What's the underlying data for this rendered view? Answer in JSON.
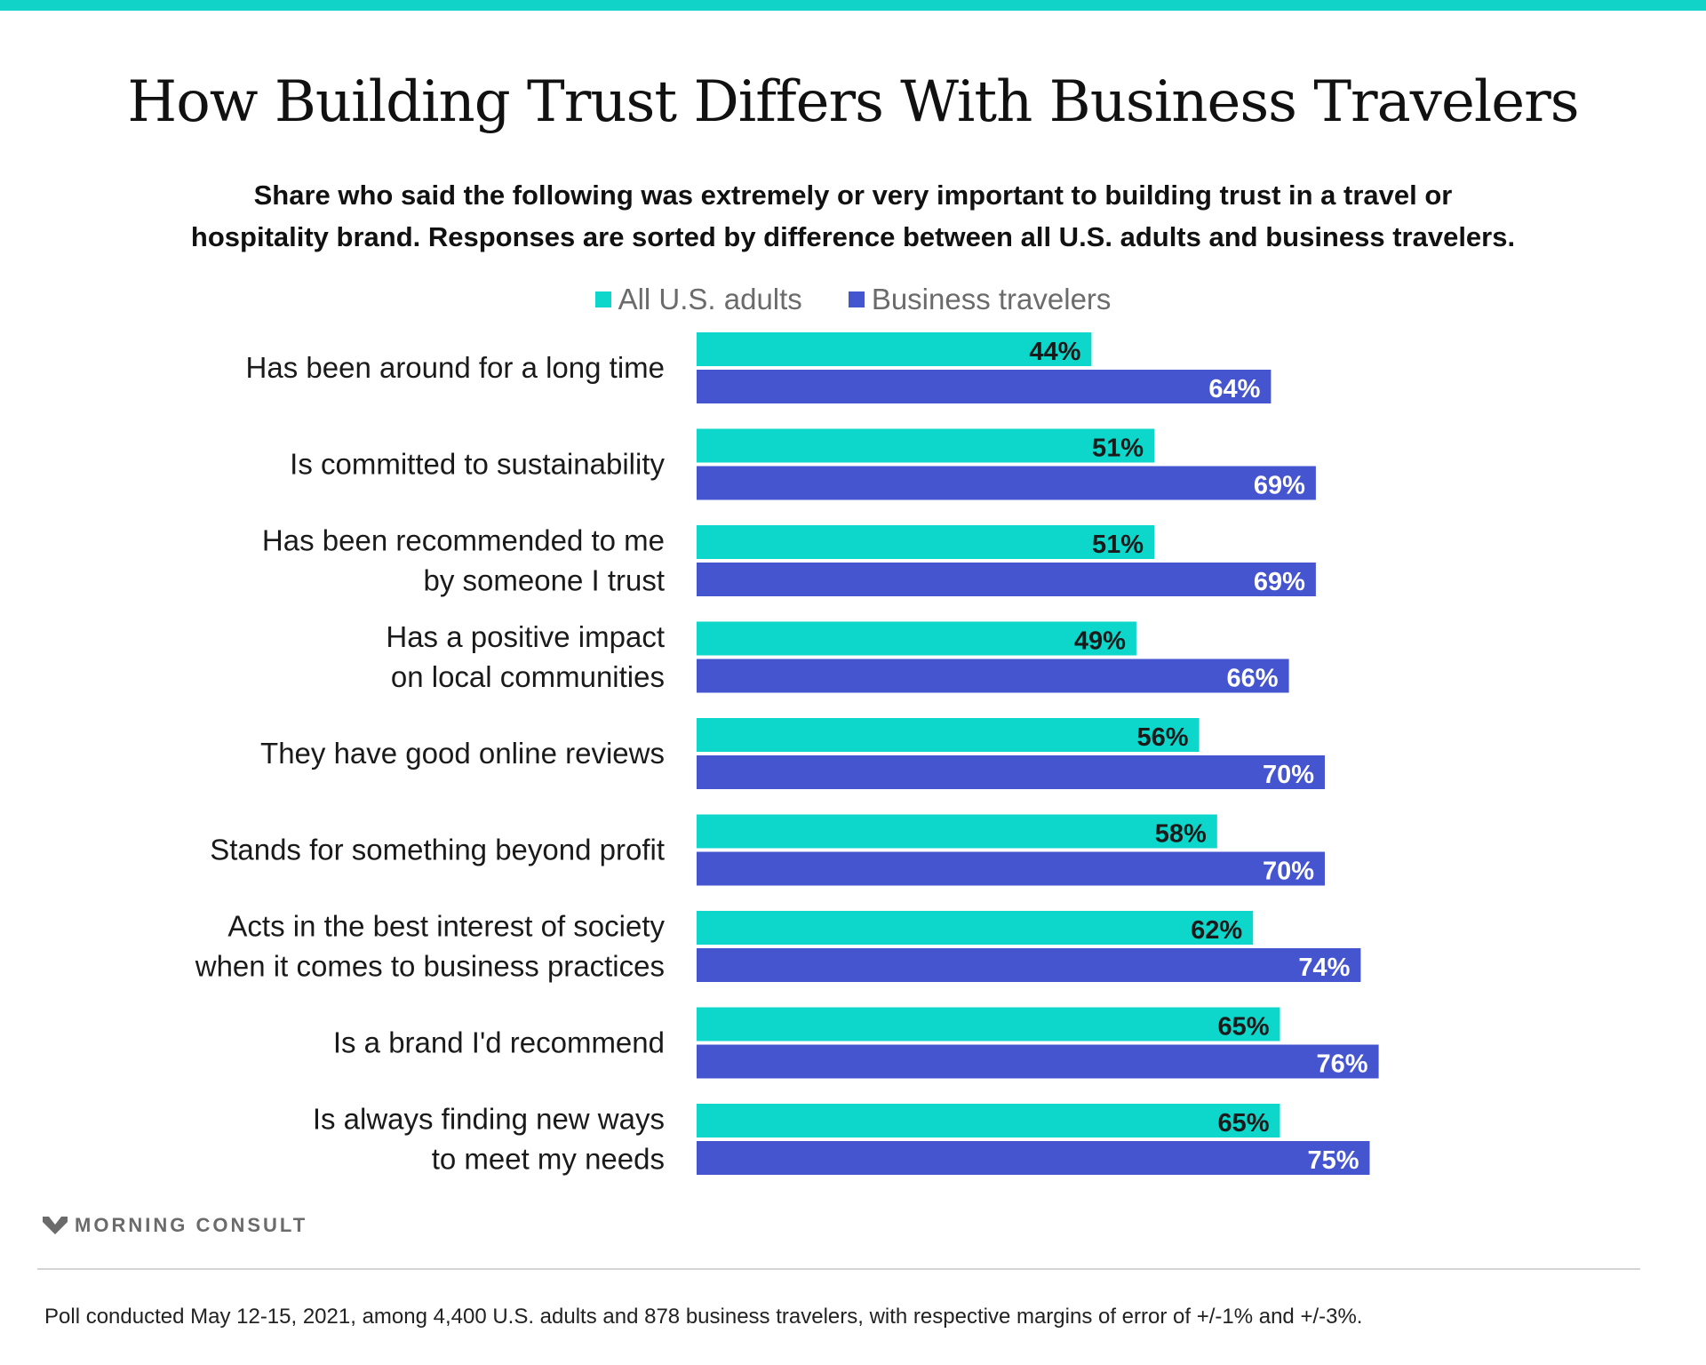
{
  "title": "How Building Trust Differs With Business Travelers",
  "subtitle_lines": [
    "Share who said the following was extremely or very important to building trust in a travel or",
    "hospitality brand. Responses are sorted by difference between all U.S. adults and business travelers."
  ],
  "colors": {
    "accent": "#12d3c7",
    "adults": "#0dd6cb",
    "business": "#4554cf",
    "adults_label": "#1a1a1a",
    "business_label": "#ffffff"
  },
  "logo": {
    "text": "MORNING CONSULT",
    "icon": "chevron-m-icon"
  },
  "footnote": "Poll conducted May 12-15, 2021, among 4,400 U.S. adults and 878 business travelers, with respective margins of error of +/-1% and +/-3%.",
  "chart_data": {
    "type": "bar",
    "orientation": "horizontal",
    "legend": "top-center",
    "xlim": [
      0,
      100
    ],
    "grid": false,
    "categories": [
      [
        "Has been around for a long time"
      ],
      [
        "Is committed to sustainability"
      ],
      [
        "Has been recommended to me",
        "by someone I trust"
      ],
      [
        "Has a positive impact",
        "on local communities"
      ],
      [
        "They have good online reviews"
      ],
      [
        "Stands for something beyond profit"
      ],
      [
        "Acts in the best interest of society",
        "when it comes to business practices"
      ],
      [
        "Is a brand I'd recommend"
      ],
      [
        "Is always finding new ways",
        "to meet my needs"
      ]
    ],
    "series": [
      {
        "name": "All U.S. adults",
        "values": [
          44,
          51,
          51,
          49,
          56,
          58,
          62,
          65,
          65
        ]
      },
      {
        "name": "Business travelers",
        "values": [
          64,
          69,
          69,
          66,
          70,
          70,
          74,
          76,
          75
        ]
      }
    ],
    "value_suffix": "%"
  }
}
